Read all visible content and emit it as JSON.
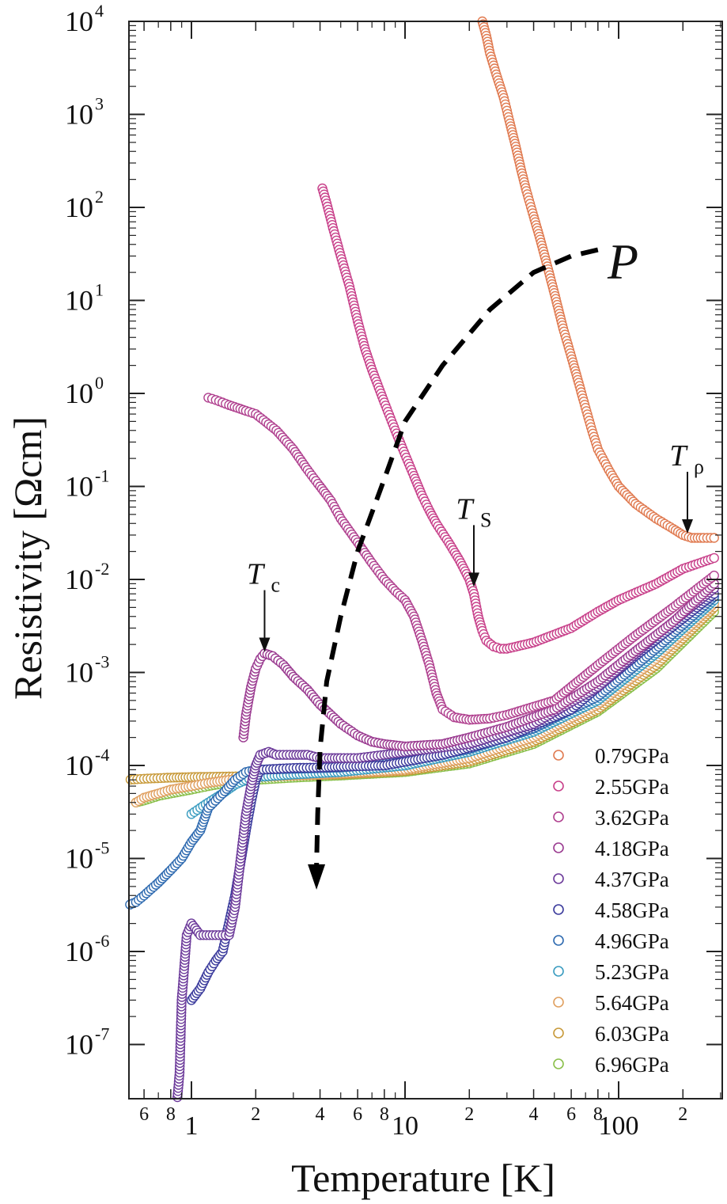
{
  "chart_data": {
    "type": "scatter",
    "title": "",
    "xlabel": "Temperature [K]",
    "ylabel": "Resistivity [Ωcm]",
    "xscale": "log",
    "yscale": "log",
    "xlim": [
      0.5,
      280
    ],
    "ylim": [
      2e-08,
      10000.0
    ],
    "grid": false,
    "legend_position": "lower-right",
    "x_major_ticks": [
      {
        "value": 1,
        "label": "1"
      },
      {
        "value": 10,
        "label": "10"
      },
      {
        "value": 100,
        "label": "100"
      }
    ],
    "x_minor_ticks": [
      {
        "value": 0.6,
        "label": "6"
      },
      {
        "value": 0.8,
        "label": "8"
      },
      {
        "value": 2,
        "label": "2"
      },
      {
        "value": 4,
        "label": "4"
      },
      {
        "value": 6,
        "label": "6"
      },
      {
        "value": 8,
        "label": "8"
      },
      {
        "value": 20,
        "label": "2"
      },
      {
        "value": 40,
        "label": "4"
      },
      {
        "value": 60,
        "label": "6"
      },
      {
        "value": 80,
        "label": "8"
      },
      {
        "value": 200,
        "label": "2"
      }
    ],
    "y_ticks": [
      {
        "exp": 4
      },
      {
        "exp": 3
      },
      {
        "exp": 2
      },
      {
        "exp": 1
      },
      {
        "exp": 0
      },
      {
        "exp": -1
      },
      {
        "exp": -2
      },
      {
        "exp": -3
      },
      {
        "exp": -4
      },
      {
        "exp": -5
      },
      {
        "exp": -6
      },
      {
        "exp": -7
      }
    ],
    "series": [
      {
        "name": "0.79GPa",
        "color": "#e07a50",
        "points": [
          [
            23,
            10000
          ],
          [
            24,
            7000
          ],
          [
            25,
            4500
          ],
          [
            27,
            2500
          ],
          [
            29,
            1500
          ],
          [
            31,
            800
          ],
          [
            33,
            450
          ],
          [
            35,
            250
          ],
          [
            37,
            150
          ],
          [
            40,
            80
          ],
          [
            43,
            45
          ],
          [
            46,
            25
          ],
          [
            50,
            12
          ],
          [
            55,
            5
          ],
          [
            60,
            2.5
          ],
          [
            65,
            1.3
          ],
          [
            70,
            0.7
          ],
          [
            75,
            0.4
          ],
          [
            80,
            0.25
          ],
          [
            90,
            0.15
          ],
          [
            100,
            0.1
          ],
          [
            120,
            0.065
          ],
          [
            150,
            0.045
          ],
          [
            180,
            0.035
          ],
          [
            200,
            0.03
          ],
          [
            220,
            0.028
          ],
          [
            250,
            0.028
          ],
          [
            280,
            0.028
          ]
        ]
      },
      {
        "name": "2.55GPa",
        "color": "#c8408a",
        "points": [
          [
            4.1,
            160
          ],
          [
            4.3,
            110
          ],
          [
            4.6,
            60
          ],
          [
            5,
            30
          ],
          [
            5.5,
            14
          ],
          [
            6,
            6
          ],
          [
            6.5,
            3
          ],
          [
            7,
            1.8
          ],
          [
            8,
            0.8
          ],
          [
            9,
            0.4
          ],
          [
            10,
            0.22
          ],
          [
            11,
            0.13
          ],
          [
            12,
            0.08
          ],
          [
            13,
            0.055
          ],
          [
            14,
            0.04
          ],
          [
            16,
            0.025
          ],
          [
            18,
            0.016
          ],
          [
            20,
            0.01
          ],
          [
            21,
            0.007
          ],
          [
            22,
            0.004
          ],
          [
            23,
            0.0028
          ],
          [
            24,
            0.0022
          ],
          [
            26,
            0.0019
          ],
          [
            28,
            0.0018
          ],
          [
            30,
            0.0018
          ],
          [
            40,
            0.0021
          ],
          [
            60,
            0.003
          ],
          [
            80,
            0.0045
          ],
          [
            100,
            0.006
          ],
          [
            150,
            0.009
          ],
          [
            200,
            0.013
          ],
          [
            280,
            0.017
          ]
        ]
      },
      {
        "name": "3.62GPa",
        "color": "#b0408f",
        "points": [
          [
            1.2,
            0.9
          ],
          [
            1.3,
            0.85
          ],
          [
            1.5,
            0.75
          ],
          [
            1.8,
            0.65
          ],
          [
            2,
            0.6
          ],
          [
            2.5,
            0.4
          ],
          [
            3,
            0.25
          ],
          [
            3.5,
            0.15
          ],
          [
            4,
            0.1
          ],
          [
            4.5,
            0.07
          ],
          [
            5,
            0.045
          ],
          [
            6,
            0.025
          ],
          [
            7,
            0.015
          ],
          [
            8,
            0.01
          ],
          [
            9,
            0.0075
          ],
          [
            10,
            0.006
          ],
          [
            11,
            0.004
          ],
          [
            12,
            0.0022
          ],
          [
            13,
            0.0012
          ],
          [
            14,
            0.0006
          ],
          [
            15,
            0.0004
          ],
          [
            17,
            0.00033
          ],
          [
            20,
            0.00031
          ],
          [
            25,
            0.00032
          ],
          [
            30,
            0.00035
          ],
          [
            50,
            0.0005
          ],
          [
            80,
            0.0012
          ],
          [
            120,
            0.0025
          ],
          [
            180,
            0.005
          ],
          [
            280,
            0.011
          ]
        ]
      },
      {
        "name": "4.18GPa",
        "color": "#9a3a90",
        "points": [
          [
            1.75,
            0.0002
          ],
          [
            1.8,
            0.00035
          ],
          [
            1.9,
            0.0007
          ],
          [
            2,
            0.0011
          ],
          [
            2.1,
            0.0014
          ],
          [
            2.2,
            0.0016
          ],
          [
            2.4,
            0.0015
          ],
          [
            2.7,
            0.0012
          ],
          [
            3,
            0.0009
          ],
          [
            3.5,
            0.00065
          ],
          [
            4,
            0.00045
          ],
          [
            5,
            0.00028
          ],
          [
            6,
            0.00021
          ],
          [
            7,
            0.00018
          ],
          [
            8,
            0.00017
          ],
          [
            10,
            0.00016
          ],
          [
            15,
            0.00017
          ],
          [
            20,
            0.0002
          ],
          [
            30,
            0.00026
          ],
          [
            50,
            0.0004
          ],
          [
            80,
            0.0008
          ],
          [
            120,
            0.0017
          ],
          [
            180,
            0.0035
          ],
          [
            280,
            0.009
          ]
        ]
      },
      {
        "name": "4.37GPa",
        "color": "#6c3a9a",
        "points": [
          [
            0.85,
            2e-08
          ],
          [
            0.88,
            5e-08
          ],
          [
            0.9,
            3e-07
          ],
          [
            0.95,
            1.5e-06
          ],
          [
            1,
            2e-06
          ],
          [
            1.1,
            1.5e-06
          ],
          [
            1.3,
            1.5e-06
          ],
          [
            1.5,
            1.5e-06
          ],
          [
            1.6,
            3e-06
          ],
          [
            1.7,
            1e-05
          ],
          [
            1.8,
            3e-05
          ],
          [
            1.9,
            6e-05
          ],
          [
            2,
            0.0001
          ],
          [
            2.1,
            0.00013
          ],
          [
            2.3,
            0.00014
          ],
          [
            2.5,
            0.00013
          ],
          [
            3,
            0.00013
          ],
          [
            3.5,
            0.00013
          ],
          [
            4,
            0.00012
          ],
          [
            5,
            0.00012
          ],
          [
            6,
            0.00012
          ],
          [
            8,
            0.00013
          ],
          [
            10,
            0.00014
          ],
          [
            20,
            0.00017
          ],
          [
            40,
            0.00028
          ],
          [
            80,
            0.0007
          ],
          [
            150,
            0.0025
          ],
          [
            280,
            0.008
          ]
        ]
      },
      {
        "name": "4.58GPa",
        "color": "#3a3a9c",
        "points": [
          [
            1,
            3e-07
          ],
          [
            1.1,
            4e-07
          ],
          [
            1.2,
            6e-07
          ],
          [
            1.3,
            8e-07
          ],
          [
            1.4,
            1e-06
          ],
          [
            1.6,
            4e-06
          ],
          [
            1.8,
            2e-05
          ],
          [
            1.9,
            4e-05
          ],
          [
            2,
            7e-05
          ],
          [
            2.1,
            9e-05
          ],
          [
            2.5,
            9.2e-05
          ],
          [
            3,
            9.4e-05
          ],
          [
            4,
            9.5e-05
          ],
          [
            5,
            9.7e-05
          ],
          [
            8,
            0.0001
          ],
          [
            15,
            0.00013
          ],
          [
            30,
            0.0002
          ],
          [
            60,
            0.0004
          ],
          [
            120,
            0.0015
          ],
          [
            280,
            0.007
          ]
        ]
      },
      {
        "name": "4.96GPa",
        "color": "#2e6ab0",
        "points": [
          [
            0.5,
            3.1e-06
          ],
          [
            0.55,
            3.4e-06
          ],
          [
            0.6,
            4e-06
          ],
          [
            0.7,
            5.5e-06
          ],
          [
            0.8,
            7.5e-06
          ],
          [
            0.9,
            1e-05
          ],
          [
            1,
            1.5e-05
          ],
          [
            1.1,
            2e-05
          ],
          [
            1.2,
            3.5e-05
          ],
          [
            1.4,
            5e-05
          ],
          [
            1.6,
            7e-05
          ],
          [
            1.8,
            8.5e-05
          ],
          [
            2,
            9e-05
          ],
          [
            3,
            9.2e-05
          ],
          [
            5,
            9.5e-05
          ],
          [
            10,
            0.00011
          ],
          [
            20,
            0.00015
          ],
          [
            40,
            0.00025
          ],
          [
            80,
            0.00055
          ],
          [
            150,
            0.0018
          ],
          [
            280,
            0.0065
          ]
        ]
      },
      {
        "name": "5.23GPa",
        "color": "#3a9cc0",
        "points": [
          [
            1,
            3e-05
          ],
          [
            1.1,
            3.5e-05
          ],
          [
            1.2,
            4e-05
          ],
          [
            1.4,
            5e-05
          ],
          [
            1.6,
            6.2e-05
          ],
          [
            1.8,
            7e-05
          ],
          [
            2,
            7.5e-05
          ],
          [
            3,
            8e-05
          ],
          [
            5,
            8.5e-05
          ],
          [
            10,
            0.0001
          ],
          [
            20,
            0.00014
          ],
          [
            40,
            0.00023
          ],
          [
            80,
            0.0005
          ],
          [
            150,
            0.0016
          ],
          [
            280,
            0.006
          ]
        ]
      },
      {
        "name": "5.64GPa",
        "color": "#e0a060",
        "points": [
          [
            0.55,
            4e-05
          ],
          [
            0.6,
            4.5e-05
          ],
          [
            0.7,
            5e-05
          ],
          [
            0.8,
            5.5e-05
          ],
          [
            1,
            6e-05
          ],
          [
            1.2,
            6.5e-05
          ],
          [
            1.5,
            7e-05
          ],
          [
            2,
            7.5e-05
          ],
          [
            3,
            7.8e-05
          ],
          [
            5,
            8.2e-05
          ],
          [
            10,
            9e-05
          ],
          [
            20,
            0.00012
          ],
          [
            40,
            0.0002
          ],
          [
            80,
            0.00045
          ],
          [
            150,
            0.0014
          ],
          [
            280,
            0.0055
          ]
        ]
      },
      {
        "name": "6.03GPa",
        "color": "#c89a3a",
        "points": [
          [
            0.5,
            7e-05
          ],
          [
            0.6,
            7.2e-05
          ],
          [
            0.8,
            7.4e-05
          ],
          [
            1,
            7.5e-05
          ],
          [
            1.5,
            7.6e-05
          ],
          [
            2,
            7.7e-05
          ],
          [
            3,
            7.8e-05
          ],
          [
            5,
            8e-05
          ],
          [
            10,
            8.7e-05
          ],
          [
            20,
            0.00011
          ],
          [
            40,
            0.00018
          ],
          [
            80,
            0.0004
          ],
          [
            150,
            0.0012
          ],
          [
            280,
            0.005
          ]
        ]
      },
      {
        "name": "6.96GPa",
        "color": "#8abf4a",
        "points": [
          [
            0.55,
            4e-05
          ],
          [
            0.6,
            4.2e-05
          ],
          [
            0.7,
            4.7e-05
          ],
          [
            0.8,
            5e-05
          ],
          [
            1,
            5.5e-05
          ],
          [
            1.2,
            6e-05
          ],
          [
            1.5,
            6.6e-05
          ],
          [
            2,
            7e-05
          ],
          [
            3,
            7.4e-05
          ],
          [
            5,
            7.8e-05
          ],
          [
            10,
            8.5e-05
          ],
          [
            20,
            0.000105
          ],
          [
            40,
            0.00017
          ],
          [
            80,
            0.00038
          ],
          [
            150,
            0.0011
          ],
          [
            280,
            0.0045
          ]
        ]
      }
    ],
    "annotations": [
      {
        "id": "Tc",
        "main": "T",
        "sub": "c",
        "x": 2.2,
        "y": 0.0016
      },
      {
        "id": "TS",
        "main": "T",
        "sub": "S",
        "x": 21,
        "y": 0.008
      },
      {
        "id": "Trho",
        "main": "T",
        "sub": "ρ",
        "x": 210,
        "y": 0.03
      },
      {
        "id": "P",
        "main": "P"
      }
    ],
    "pressure_arrow": {
      "path": [
        [
          80,
          35
        ],
        [
          60,
          30
        ],
        [
          40,
          20
        ],
        [
          25,
          8
        ],
        [
          15,
          2
        ],
        [
          10,
          0.5
        ],
        [
          8,
          0.12
        ],
        [
          6,
          0.02
        ],
        [
          5,
          0.004
        ],
        [
          4.3,
          0.0008
        ],
        [
          4,
          0.00015
        ],
        [
          3.9,
          3e-05
        ],
        [
          3.85,
          8e-06
        ]
      ]
    }
  }
}
